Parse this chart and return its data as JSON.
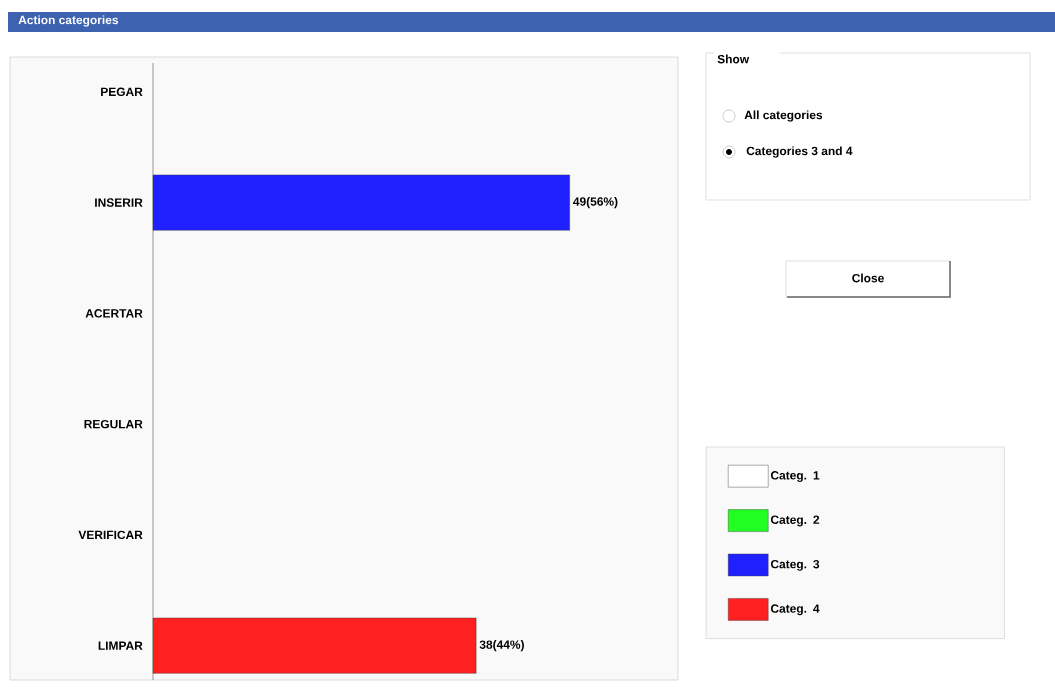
{
  "chart_data": {
    "type": "bar",
    "orientation": "horizontal",
    "title": "Action categories",
    "categories": [
      "PEGAR",
      "INSERIR",
      "ACERTAR",
      "REGULAR",
      "VERIFICAR",
      "LIMPAR"
    ],
    "series": [
      {
        "name": "Categ. 1",
        "color": "#ffffff",
        "values": [
          null,
          null,
          null,
          null,
          null,
          null
        ]
      },
      {
        "name": "Categ. 2",
        "color": "#22ff22",
        "values": [
          null,
          null,
          null,
          null,
          null,
          null
        ]
      },
      {
        "name": "Categ. 3",
        "color": "#2020ff",
        "values": [
          null,
          49,
          null,
          null,
          null,
          null
        ],
        "value_labels": [
          null,
          "49(56%)",
          null,
          null,
          null,
          null
        ]
      },
      {
        "name": "Categ. 4",
        "color": "#ff2020",
        "values": [
          null,
          null,
          null,
          null,
          null,
          38
        ],
        "value_labels": [
          null,
          null,
          null,
          null,
          null,
          "38(44%)"
        ]
      }
    ],
    "legend": "right",
    "annotations": [
      "Show",
      "All categories",
      "Categories 3 and 4",
      "Close"
    ]
  }
}
